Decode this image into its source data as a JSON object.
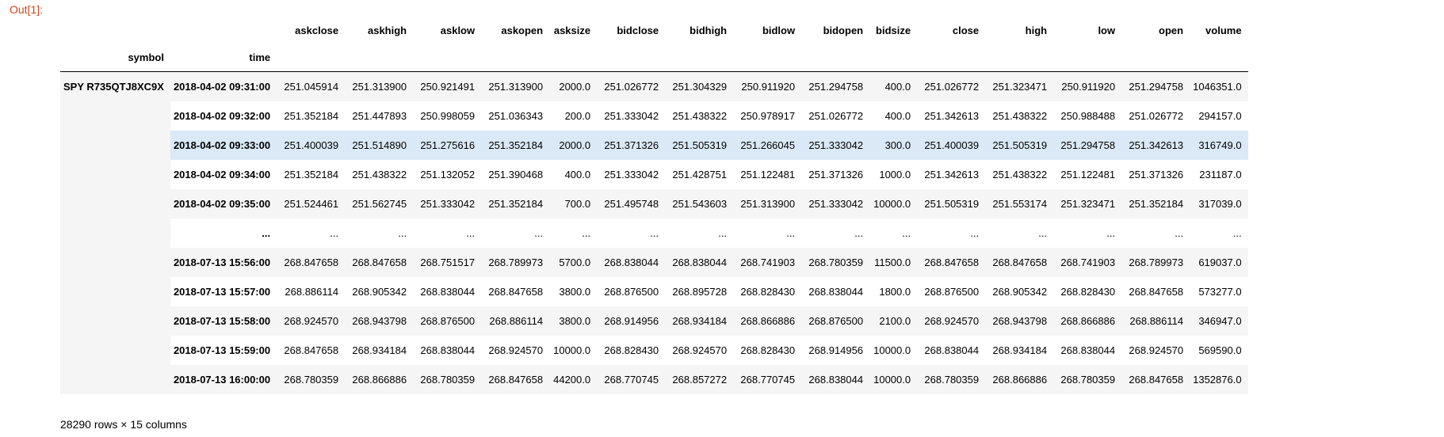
{
  "cell": {
    "out_label": "Out[1]:"
  },
  "table": {
    "columns": [
      "askclose",
      "askhigh",
      "asklow",
      "askopen",
      "asksize",
      "bidclose",
      "bidhigh",
      "bidlow",
      "bidopen",
      "bidsize",
      "close",
      "high",
      "low",
      "open",
      "volume"
    ],
    "index_names": [
      "symbol",
      "time"
    ],
    "symbol": "SPY R735QTJ8XC9X",
    "highlighted_row": 2,
    "rows": [
      {
        "time": "2018-04-02 09:31:00",
        "values": [
          "251.045914",
          "251.313900",
          "250.921491",
          "251.313900",
          "2000.0",
          "251.026772",
          "251.304329",
          "250.911920",
          "251.294758",
          "400.0",
          "251.026772",
          "251.323471",
          "250.911920",
          "251.294758",
          "1046351.0"
        ]
      },
      {
        "time": "2018-04-02 09:32:00",
        "values": [
          "251.352184",
          "251.447893",
          "250.998059",
          "251.036343",
          "200.0",
          "251.333042",
          "251.438322",
          "250.978917",
          "251.026772",
          "400.0",
          "251.342613",
          "251.438322",
          "250.988488",
          "251.026772",
          "294157.0"
        ]
      },
      {
        "time": "2018-04-02 09:33:00",
        "values": [
          "251.400039",
          "251.514890",
          "251.275616",
          "251.352184",
          "2000.0",
          "251.371326",
          "251.505319",
          "251.266045",
          "251.333042",
          "300.0",
          "251.400039",
          "251.505319",
          "251.294758",
          "251.342613",
          "316749.0"
        ]
      },
      {
        "time": "2018-04-02 09:34:00",
        "values": [
          "251.352184",
          "251.438322",
          "251.132052",
          "251.390468",
          "400.0",
          "251.333042",
          "251.428751",
          "251.122481",
          "251.371326",
          "1000.0",
          "251.342613",
          "251.438322",
          "251.122481",
          "251.371326",
          "231187.0"
        ]
      },
      {
        "time": "2018-04-02 09:35:00",
        "values": [
          "251.524461",
          "251.562745",
          "251.333042",
          "251.352184",
          "700.0",
          "251.495748",
          "251.543603",
          "251.313900",
          "251.333042",
          "10000.0",
          "251.505319",
          "251.553174",
          "251.323471",
          "251.352184",
          "317039.0"
        ]
      },
      {
        "time": "...",
        "values": [
          "...",
          "...",
          "...",
          "...",
          "...",
          "...",
          "...",
          "...",
          "...",
          "...",
          "...",
          "...",
          "...",
          "...",
          "..."
        ]
      },
      {
        "time": "2018-07-13 15:56:00",
        "values": [
          "268.847658",
          "268.847658",
          "268.751517",
          "268.789973",
          "5700.0",
          "268.838044",
          "268.838044",
          "268.741903",
          "268.780359",
          "11500.0",
          "268.847658",
          "268.847658",
          "268.741903",
          "268.789973",
          "619037.0"
        ]
      },
      {
        "time": "2018-07-13 15:57:00",
        "values": [
          "268.886114",
          "268.905342",
          "268.838044",
          "268.847658",
          "3800.0",
          "268.876500",
          "268.895728",
          "268.828430",
          "268.838044",
          "1800.0",
          "268.876500",
          "268.905342",
          "268.828430",
          "268.847658",
          "573277.0"
        ]
      },
      {
        "time": "2018-07-13 15:58:00",
        "values": [
          "268.924570",
          "268.943798",
          "268.876500",
          "268.886114",
          "3800.0",
          "268.914956",
          "268.934184",
          "268.866886",
          "268.876500",
          "2100.0",
          "268.924570",
          "268.943798",
          "268.866886",
          "268.886114",
          "346947.0"
        ]
      },
      {
        "time": "2018-07-13 15:59:00",
        "values": [
          "268.847658",
          "268.934184",
          "268.838044",
          "268.924570",
          "10000.0",
          "268.828430",
          "268.924570",
          "268.828430",
          "268.914956",
          "10000.0",
          "268.838044",
          "268.934184",
          "268.838044",
          "268.924570",
          "569590.0"
        ]
      },
      {
        "time": "2018-07-13 16:00:00",
        "values": [
          "268.780359",
          "268.866886",
          "268.780359",
          "268.847658",
          "44200.0",
          "268.770745",
          "268.857272",
          "268.770745",
          "268.838044",
          "10000.0",
          "268.780359",
          "268.866886",
          "268.780359",
          "268.847658",
          "1352876.0"
        ]
      }
    ],
    "footer": "28290 rows × 15 columns"
  }
}
